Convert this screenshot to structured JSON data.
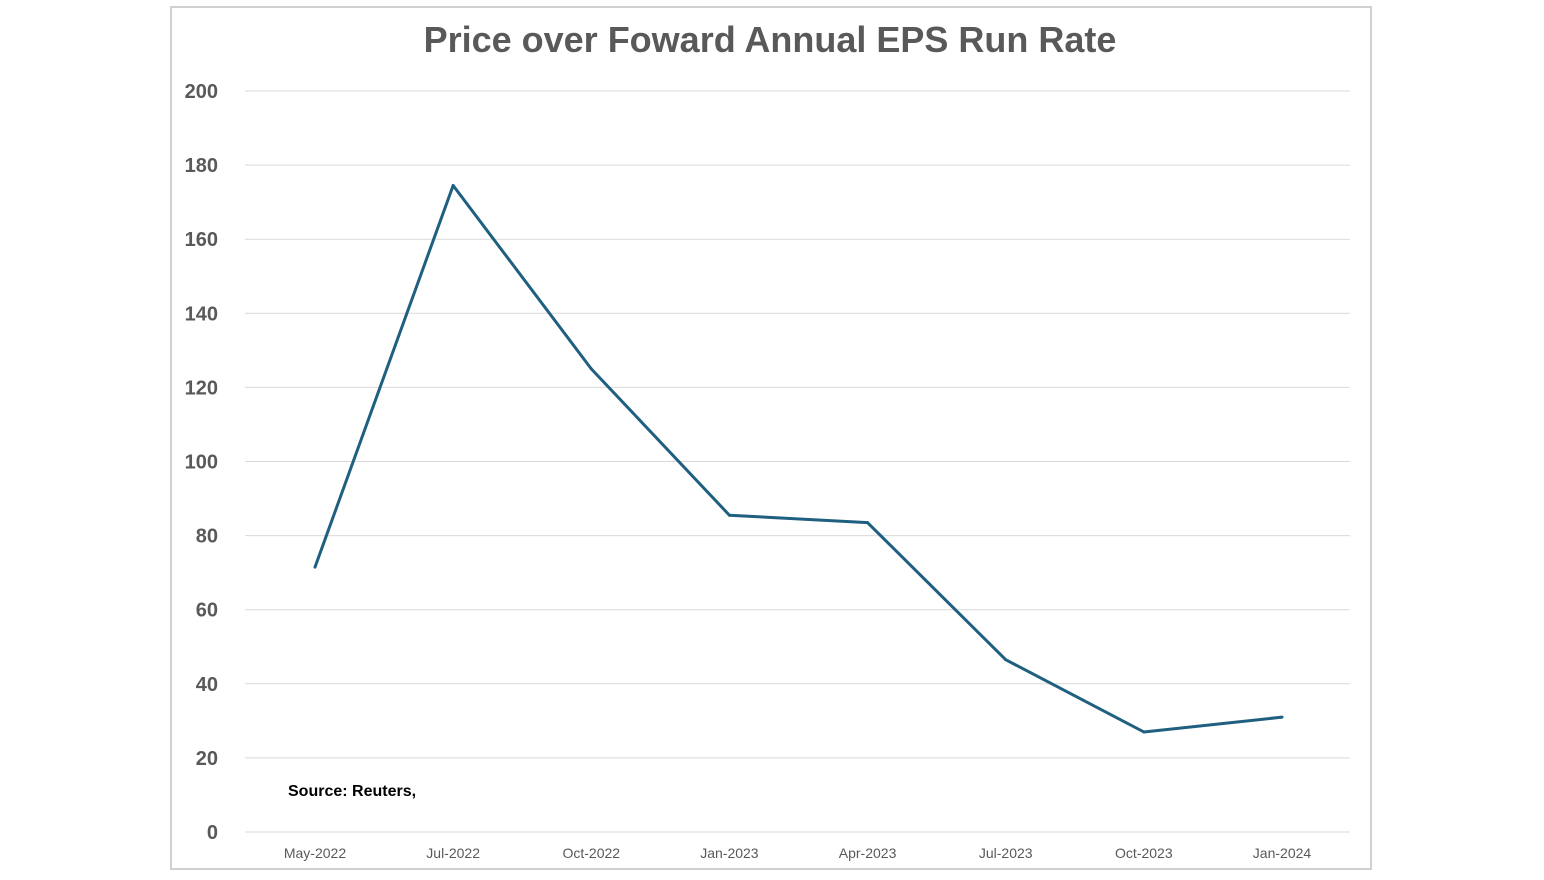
{
  "chart_data": {
    "type": "line",
    "title": "Price over Foward Annual EPS Run Rate",
    "xlabel": "",
    "ylabel": "",
    "ylim": [
      0,
      200
    ],
    "yticks": [
      0,
      20,
      40,
      60,
      80,
      100,
      120,
      140,
      160,
      180,
      200
    ],
    "grid": true,
    "legend": "none",
    "categories": [
      "May-2022",
      "Jul-2022",
      "Oct-2022",
      "Jan-2023",
      "Apr-2023",
      "Jul-2023",
      "Oct-2023",
      "Jan-2024"
    ],
    "series": [
      {
        "values": [
          71.5,
          174.5,
          125,
          85.5,
          83.5,
          46.5,
          27,
          31
        ],
        "color": "#1f5f7f"
      }
    ],
    "annotation": "Source:  Reuters,"
  }
}
